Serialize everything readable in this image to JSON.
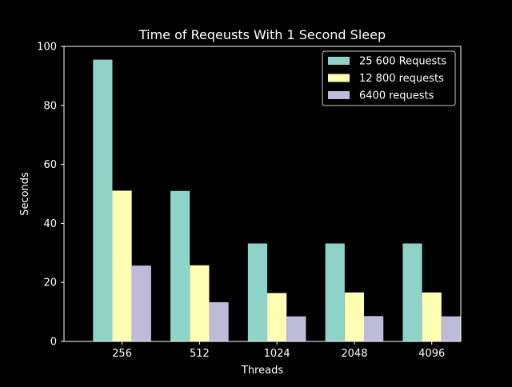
{
  "chart_data": {
    "type": "bar",
    "title": "Time of Reqeusts With 1 Second Sleep",
    "xlabel": "Threads",
    "ylabel": "Seconds",
    "categories": [
      "256",
      "512",
      "1024",
      "2048",
      "4096"
    ],
    "ylim": [
      0,
      100
    ],
    "yticks": [
      0,
      20,
      40,
      60,
      80,
      100
    ],
    "grid": false,
    "legend_position": "top-right",
    "series": [
      {
        "name": "25 600 Requests",
        "color": "#8dd3c7",
        "values": [
          95.5,
          51.0,
          33.2,
          33.2,
          33.2
        ]
      },
      {
        "name": "12 800 requests",
        "color": "#ffffb3",
        "values": [
          51.1,
          25.8,
          16.4,
          16.6,
          16.6
        ]
      },
      {
        "name": "6400 requests",
        "color": "#bebada",
        "values": [
          25.7,
          13.3,
          8.5,
          8.6,
          8.5
        ]
      }
    ]
  }
}
